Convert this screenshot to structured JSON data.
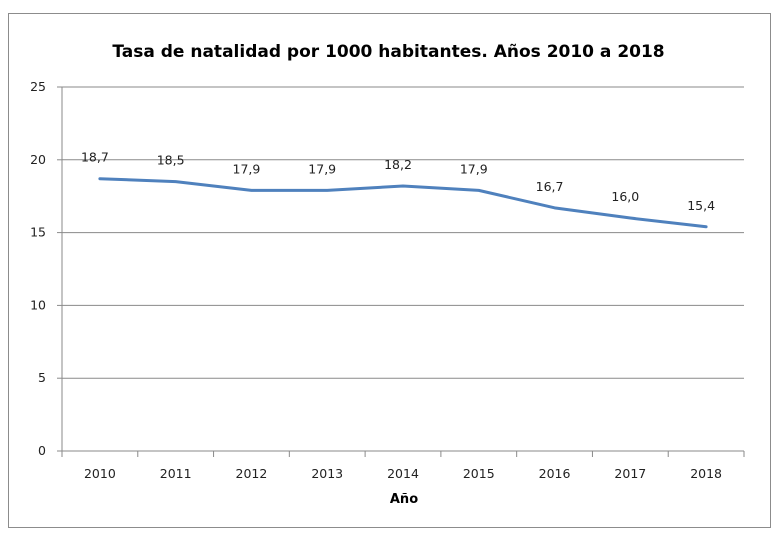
{
  "chart_data": {
    "type": "line",
    "title": "Tasa de natalidad por 1000 habitantes. Años 2010 a 2018",
    "xlabel": "Año",
    "ylabel": "",
    "categories": [
      "2010",
      "2011",
      "2012",
      "2013",
      "2014",
      "2015",
      "2016",
      "2017",
      "2018"
    ],
    "series": [
      {
        "values": [
          18.7,
          18.5,
          17.9,
          17.9,
          18.2,
          17.9,
          16.7,
          16.0,
          15.4
        ],
        "labels": [
          "18,7",
          "18,5",
          "17,9",
          "17,9",
          "18,2",
          "17,9",
          "16,7",
          "16,0",
          "15,4"
        ]
      }
    ],
    "ylim": [
      0,
      25
    ],
    "yticks": [
      "0",
      "5",
      "10",
      "15",
      "20",
      "25"
    ],
    "grid": true,
    "legend": "none",
    "line_color": "#4f81bd"
  }
}
